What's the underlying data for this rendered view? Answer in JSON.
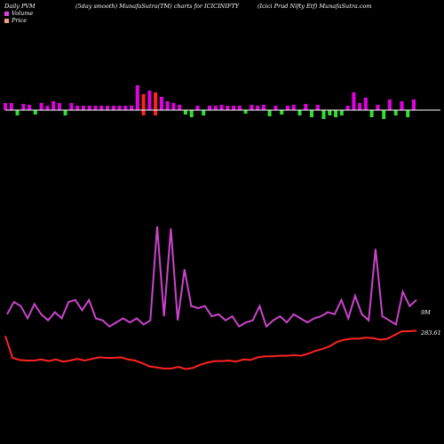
{
  "header": {
    "left": "Daily PVM",
    "center1": "(5day smooth) MunafaSutra(TM) charts for ICICINIFTY",
    "center2": "(Icici  Prud Nifty Etf) MunafaSutra.com"
  },
  "legend": {
    "items": [
      {
        "label": "Volume",
        "color": "#e040e0"
      },
      {
        "label": "Price",
        "color": "#f0a080"
      }
    ]
  },
  "colors": {
    "background": "#000000",
    "volume_up": "#e000e0",
    "volume_down": "#33dd33",
    "volume_spike_down": "#ff2222",
    "price_line": "#ff2222",
    "volume_line": "#cc44cc",
    "axis_line": "#ffffff"
  },
  "chart_data": {
    "type": "line",
    "label_volume": "9M",
    "label_price": "283.61",
    "price": [
      283.61,
      279.5,
      279.1,
      279.0,
      279.0,
      279.2,
      278.9,
      279.2,
      278.8,
      279.0,
      279.3,
      279.0,
      279.3,
      279.6,
      279.5,
      279.5,
      279.6,
      279.2,
      279.0,
      278.5,
      277.9,
      277.7,
      277.5,
      277.5,
      277.8,
      277.4,
      277.6,
      278.2,
      278.6,
      278.9,
      278.9,
      279.0,
      278.8,
      279.2,
      279.1,
      279.6,
      279.8,
      279.8,
      279.9,
      279.9,
      280.0,
      279.9,
      280.3,
      280.8,
      281.2,
      281.7,
      282.5,
      282.9,
      283.1,
      283.1,
      283.3,
      283.2,
      282.9,
      283.1,
      283.8,
      284.5,
      284.5,
      284.6
    ],
    "volume_line": [
      5.2,
      5.8,
      5.6,
      5.0,
      5.7,
      5.2,
      4.9,
      5.3,
      5.0,
      5.8,
      5.9,
      5.4,
      5.9,
      5.0,
      4.9,
      4.6,
      4.8,
      5.0,
      4.8,
      5.0,
      4.7,
      4.9,
      9.5,
      5.1,
      9.4,
      4.9,
      7.4,
      5.6,
      5.5,
      5.6,
      5.1,
      5.2,
      4.9,
      5.1,
      4.6,
      4.8,
      4.9,
      5.6,
      4.6,
      4.9,
      5.1,
      4.8,
      5.2,
      5.0,
      4.8,
      5.0,
      5.1,
      5.3,
      5.2,
      5.9,
      5.0,
      6.1,
      5.2,
      4.9,
      8.4,
      5.1,
      4.9,
      4.7,
      6.3,
      5.6,
      5.9
    ],
    "volume_bars": [
      {
        "v": 8,
        "dir": "up"
      },
      {
        "v": 8,
        "dir": "up"
      },
      {
        "v": 6,
        "dir": "down"
      },
      {
        "v": 7,
        "dir": "up"
      },
      {
        "v": 6,
        "dir": "up"
      },
      {
        "v": 5,
        "dir": "down"
      },
      {
        "v": 8,
        "dir": "up"
      },
      {
        "v": 5,
        "dir": "up"
      },
      {
        "v": 10,
        "dir": "up"
      },
      {
        "v": 8,
        "dir": "up"
      },
      {
        "v": 6,
        "dir": "down"
      },
      {
        "v": 8,
        "dir": "up"
      },
      {
        "v": 5,
        "dir": "up"
      },
      {
        "v": 5,
        "dir": "up"
      },
      {
        "v": 5,
        "dir": "up"
      },
      {
        "v": 5,
        "dir": "up"
      },
      {
        "v": 5,
        "dir": "up"
      },
      {
        "v": 5,
        "dir": "up"
      },
      {
        "v": 5,
        "dir": "up"
      },
      {
        "v": 5,
        "dir": "up"
      },
      {
        "v": 5,
        "dir": "up"
      },
      {
        "v": 5,
        "dir": "up"
      },
      {
        "v": 28,
        "dir": "up"
      },
      {
        "v": 18,
        "dir": "spike"
      },
      {
        "v": 22,
        "dir": "up"
      },
      {
        "v": 20,
        "dir": "spike"
      },
      {
        "v": 15,
        "dir": "up"
      },
      {
        "v": 10,
        "dir": "up"
      },
      {
        "v": 8,
        "dir": "up"
      },
      {
        "v": 6,
        "dir": "up"
      },
      {
        "v": 5,
        "dir": "down"
      },
      {
        "v": 8,
        "dir": "down"
      },
      {
        "v": 5,
        "dir": "up"
      },
      {
        "v": 6,
        "dir": "down"
      },
      {
        "v": 5,
        "dir": "up"
      },
      {
        "v": 5,
        "dir": "up"
      },
      {
        "v": 6,
        "dir": "up"
      },
      {
        "v": 5,
        "dir": "up"
      },
      {
        "v": 5,
        "dir": "up"
      },
      {
        "v": 5,
        "dir": "up"
      },
      {
        "v": 4,
        "dir": "down"
      },
      {
        "v": 6,
        "dir": "up"
      },
      {
        "v": 5,
        "dir": "up"
      },
      {
        "v": 6,
        "dir": "up"
      },
      {
        "v": 7,
        "dir": "down"
      },
      {
        "v": 5,
        "dir": "up"
      },
      {
        "v": 5,
        "dir": "down"
      },
      {
        "v": 5,
        "dir": "up"
      },
      {
        "v": 6,
        "dir": "up"
      },
      {
        "v": 6,
        "dir": "down"
      },
      {
        "v": 7,
        "dir": "up"
      },
      {
        "v": 8,
        "dir": "down"
      },
      {
        "v": 6,
        "dir": "up"
      },
      {
        "v": 10,
        "dir": "down"
      },
      {
        "v": 6,
        "dir": "down"
      },
      {
        "v": 8,
        "dir": "down"
      },
      {
        "v": 6,
        "dir": "down"
      },
      {
        "v": 5,
        "dir": "up"
      },
      {
        "v": 20,
        "dir": "up"
      },
      {
        "v": 8,
        "dir": "up"
      },
      {
        "v": 14,
        "dir": "up"
      },
      {
        "v": 8,
        "dir": "down"
      },
      {
        "v": 6,
        "dir": "up"
      },
      {
        "v": 10,
        "dir": "down"
      },
      {
        "v": 12,
        "dir": "up"
      },
      {
        "v": 6,
        "dir": "down"
      },
      {
        "v": 10,
        "dir": "up"
      },
      {
        "v": 8,
        "dir": "down"
      },
      {
        "v": 12,
        "dir": "up"
      }
    ]
  }
}
